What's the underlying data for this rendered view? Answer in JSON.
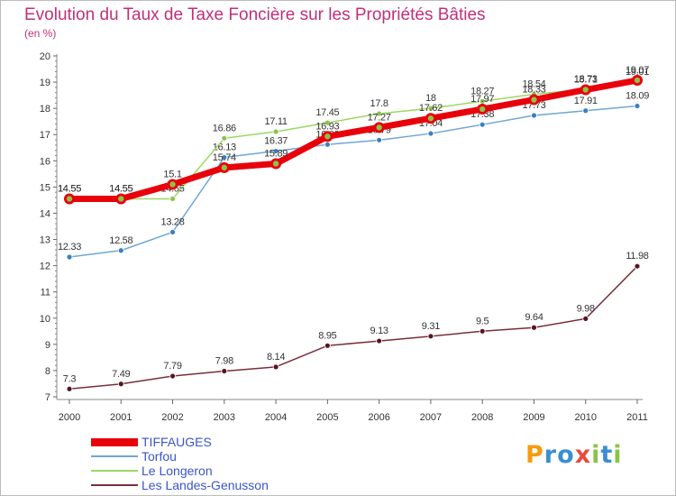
{
  "title": "Evolution du Taux de Taxe Foncière sur les Propriétés Bâties",
  "unit_label": "(en %)",
  "logo": {
    "letters": [
      {
        "ch": "P",
        "color": "#f39c12"
      },
      {
        "ch": "r",
        "color": "#3a8fd0"
      },
      {
        "ch": "o",
        "color": "#3a8fd0"
      },
      {
        "ch": "x",
        "color": "#e74c3c"
      },
      {
        "ch": "i",
        "color": "#8bc34a"
      },
      {
        "ch": "t",
        "color": "#3a8fd0"
      },
      {
        "ch": "i",
        "color": "#8bc34a"
      }
    ]
  },
  "chart_data": {
    "type": "line",
    "x": [
      "2000",
      "2001",
      "2002",
      "2003",
      "2004",
      "2005",
      "2006",
      "2007",
      "2008",
      "2009",
      "2010",
      "2011"
    ],
    "ylim": [
      7,
      20
    ],
    "yticks": [
      "7",
      "8",
      "9",
      "10",
      "11",
      "12",
      "13",
      "14",
      "15",
      "16",
      "17",
      "18",
      "19",
      "20"
    ],
    "grid": false,
    "legend_position": "bottom-left",
    "series": [
      {
        "name": "TIFFAUGES",
        "color": "#e8000b",
        "marker_fill": "#8bc34a",
        "width": 7,
        "values": [
          14.55,
          14.55,
          15.1,
          15.74,
          15.89,
          16.93,
          17.27,
          17.62,
          17.97,
          18.33,
          18.71,
          19.07
        ],
        "labels": [
          "14.55",
          "14.55",
          "15.1",
          "15.74",
          "15.89",
          "16.93",
          "17.27",
          "17.62",
          "17.97",
          "18.33",
          "18.71",
          "19.07"
        ]
      },
      {
        "name": "Torfou",
        "color": "#6fa7d3",
        "marker_fill": "#3b7fc0",
        "width": 1.5,
        "values": [
          12.33,
          12.58,
          13.28,
          16.13,
          16.37,
          16.62,
          16.79,
          17.04,
          17.38,
          17.73,
          17.91,
          18.09
        ],
        "labels": [
          "12.33",
          "12.58",
          "13.28",
          "16.13",
          "16.37",
          "16.62",
          "16.79",
          "17.04",
          "17.38",
          "17.73",
          "17.91",
          "18.09"
        ]
      },
      {
        "name": "Le Longeron",
        "color": "#9bd862",
        "marker_fill": "#8bc34a",
        "width": 1.5,
        "values": [
          14.55,
          14.55,
          14.55,
          16.86,
          17.11,
          17.45,
          17.8,
          18,
          18.27,
          18.54,
          18.73,
          19.01
        ],
        "labels": [
          "14.55",
          "14.55",
          "14.55",
          "16.86",
          "17.11",
          "17.45",
          "17.8",
          "18",
          "18.27",
          "18.54",
          "18.73",
          "19.01"
        ]
      },
      {
        "name": "Les Landes-Genusson",
        "color": "#7a2e3a",
        "marker_fill": "#5a1420",
        "width": 1.5,
        "values": [
          7.3,
          7.49,
          7.79,
          7.98,
          8.14,
          8.95,
          9.13,
          9.31,
          9.5,
          9.64,
          9.98,
          11.98
        ],
        "labels": [
          "7.3",
          "7.49",
          "7.79",
          "7.98",
          "8.14",
          "8.95",
          "9.13",
          "9.31",
          "9.5",
          "9.64",
          "9.98",
          "11.98"
        ]
      }
    ]
  }
}
